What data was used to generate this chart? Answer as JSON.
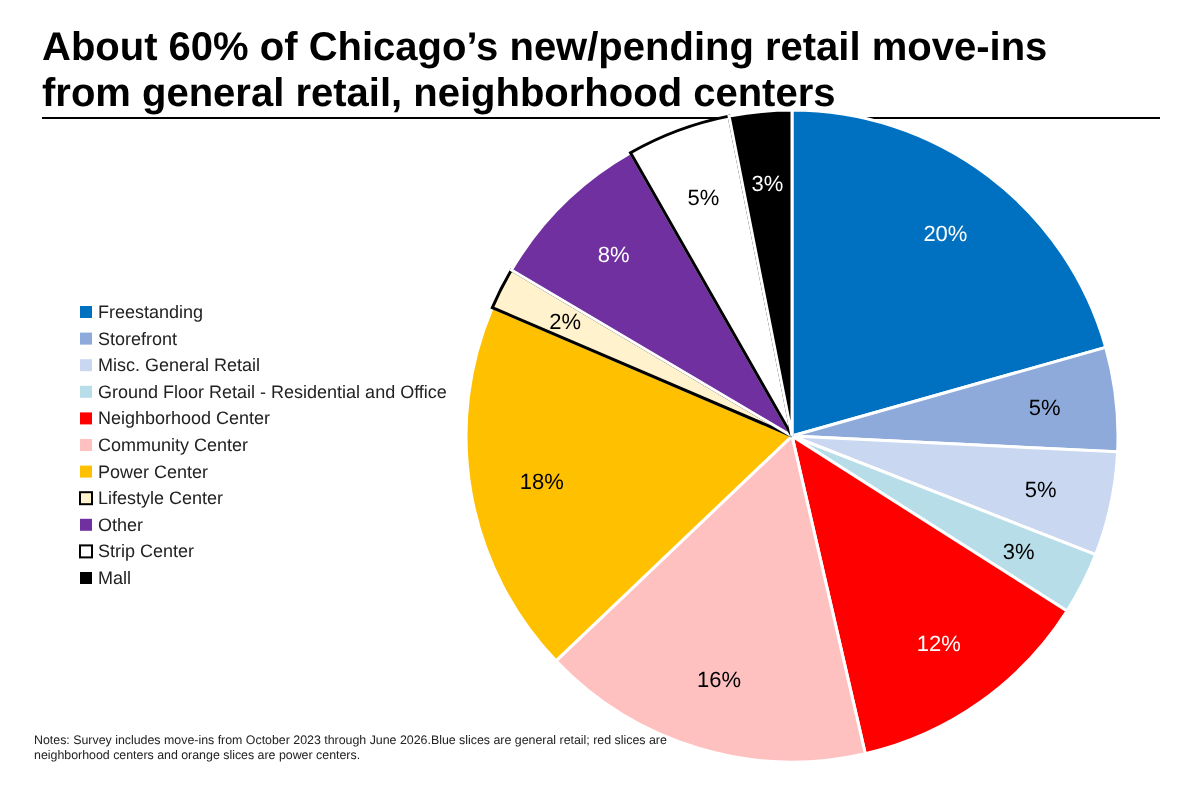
{
  "chart_data": {
    "type": "pie",
    "title": "About 60% of Chicago’s new/pending retail move-ins from general retail, neighborhood centers",
    "categories": [
      "Freestanding",
      "Storefront",
      "Misc. General Retail",
      "Ground Floor Retail - Residential and Office",
      "Neighborhood Center",
      "Community Center",
      "Power Center",
      "Lifestyle Center",
      "Other",
      "Strip Center",
      "Mall"
    ],
    "values": [
      20,
      5,
      5,
      3,
      12,
      16,
      18,
      2,
      8,
      5,
      3
    ],
    "value_labels": [
      "20%",
      "5%",
      "5%",
      "3%",
      "12%",
      "16%",
      "18%",
      "2%",
      "8%",
      "5%",
      "3%"
    ],
    "colors": [
      "#0070c0",
      "#8eaadb",
      "#c9d7f0",
      "#b7dde8",
      "#ff0000",
      "#ffc0c0",
      "#ffc000",
      "#fff2cc",
      "#7030a0",
      "#ffffff",
      "#000000"
    ],
    "legend": "left",
    "annotations": [
      "Notes: Survey includes move-ins from October 2023 through June 2026.Blue slices are general retail; red slices are neighborhood centers and orange slices are power centers."
    ]
  }
}
